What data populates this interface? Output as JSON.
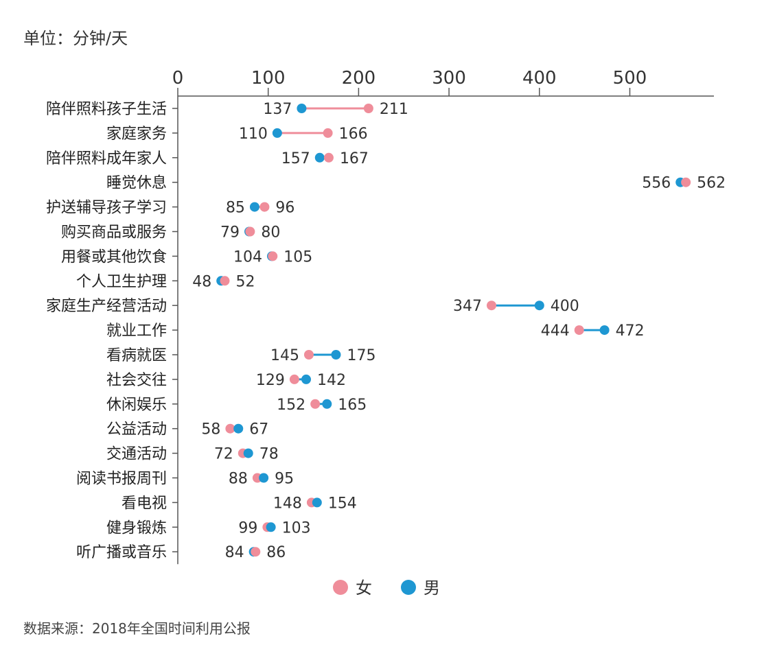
{
  "unit_label": "单位：分钟/天",
  "source_label": "数据来源：2018年全国时间利用公报",
  "colors": {
    "female": "#ef8d9a",
    "male": "#1e97d2",
    "axis": "#555555"
  },
  "chart_data": {
    "type": "dumbbell",
    "x_ticks": [
      "0",
      "100",
      "200",
      "300",
      "400",
      "500"
    ],
    "x_tick_values": [
      0,
      100,
      200,
      300,
      400,
      500
    ],
    "xlim": [
      0,
      590
    ],
    "categories": [
      "陪伴照料孩子生活",
      "家庭家务",
      "陪伴照料成年家人",
      "睡觉休息",
      "护送辅导孩子学习",
      "购买商品或服务",
      "用餐或其他饮食",
      "个人卫生护理",
      "家庭生产经营活动",
      "就业工作",
      "看病就医",
      "社会交往",
      "休闲娱乐",
      "公益活动",
      "交通活动",
      "阅读书报周刊",
      "看电视",
      "健身锻炼",
      "听广播或音乐"
    ],
    "series": [
      {
        "name": "女",
        "key": "female",
        "values": [
          211,
          166,
          167,
          562,
          96,
          80,
          105,
          52,
          347,
          444,
          145,
          129,
          152,
          58,
          72,
          88,
          148,
          99,
          86
        ]
      },
      {
        "name": "男",
        "key": "male",
        "values": [
          137,
          110,
          157,
          556,
          85,
          79,
          104,
          48,
          400,
          472,
          175,
          142,
          165,
          67,
          78,
          95,
          154,
          103,
          84
        ]
      }
    ],
    "legend": {
      "position": "bottom-center",
      "items": [
        "女",
        "男"
      ]
    },
    "grid": false
  }
}
